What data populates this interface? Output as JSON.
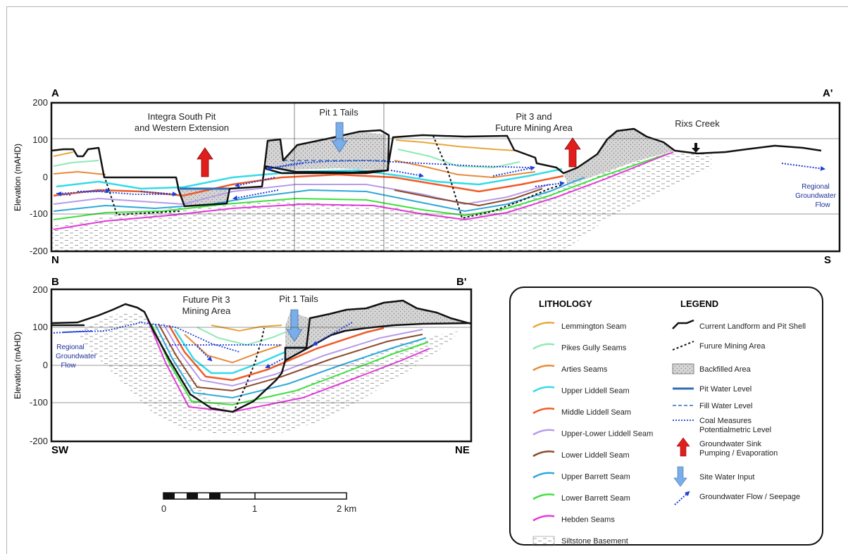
{
  "section_a": {
    "left_end": "A",
    "right_end": "A'",
    "left_bottom": "N",
    "right_bottom": "S",
    "y_axis_label": "Elevation (mAHD)",
    "y_ticks": [
      "200",
      "100",
      "0",
      "-100",
      "-200"
    ],
    "labels": {
      "integra_line1": "Integra South Pit",
      "integra_line2": "and Western Extension",
      "pit1_tails": "Pit 1 Tails",
      "pit3_line1": "Pit 3 and",
      "pit3_line2": "Future Mining Area",
      "rixs_creek": "Rixs Creek",
      "regional_line1": "Regional",
      "regional_line2": "Groundwater",
      "regional_line3": "Flow"
    }
  },
  "section_b": {
    "left_end": "B",
    "right_end": "B'",
    "left_bottom": "SW",
    "right_bottom": "NE",
    "y_axis_label": "Elevation (mAHD)",
    "y_ticks": [
      "200",
      "100",
      "0",
      "-100",
      "-200"
    ],
    "labels": {
      "future_pit3_line1": "Future Pit 3",
      "future_pit3_line2": "Mining Area",
      "pit1_tails": "Pit 1 Tails",
      "regional_line1": "Regional",
      "regional_line2": "Groundwater",
      "regional_line3": "Flow"
    }
  },
  "scale_bar": {
    "labels": [
      "0",
      "1",
      "2 km"
    ]
  },
  "lithology": {
    "title": "LITHOLOGY",
    "items": [
      {
        "label": "Lemmington Seam",
        "color": "#e8a83a",
        "kind": "line"
      },
      {
        "label": "Pikes Gully Seams",
        "color": "#8fe9b6",
        "kind": "line"
      },
      {
        "label": "Arties Seams",
        "color": "#e88a3a",
        "kind": "line"
      },
      {
        "label": "Upper Liddell Seam",
        "color": "#33dbe8",
        "kind": "line"
      },
      {
        "label": "Middle Liddell Seam",
        "color": "#f05a28",
        "kind": "line"
      },
      {
        "label": "Upper-Lower Liddell Seam",
        "color": "#b79be8",
        "kind": "line"
      },
      {
        "label": "Lower Liddell Seam",
        "color": "#8a4a2a",
        "kind": "line"
      },
      {
        "label": "Upper Barrett Seam",
        "color": "#2fa8d8",
        "kind": "line"
      },
      {
        "label": "Lower Barrett Seam",
        "color": "#3ee03e",
        "kind": "line"
      },
      {
        "label": "Hebden Seams",
        "color": "#e23ad8",
        "kind": "line"
      },
      {
        "label": "Siltstone Basement",
        "color": "#9a9a9a",
        "kind": "hatch"
      }
    ]
  },
  "legend": {
    "title": "LEGEND",
    "items": [
      {
        "label": "Current Landform and Pit Shell",
        "kind": "landform"
      },
      {
        "label": "Furure Mining Area",
        "kind": "future"
      },
      {
        "label": "Backfilled Area",
        "kind": "backfill"
      },
      {
        "label": "Pit Water Level",
        "kind": "pitwater"
      },
      {
        "label": "Fill Water Level",
        "kind": "fillwater"
      },
      {
        "label": "Coal Measures",
        "label2": "Potentialmetric Level",
        "kind": "potentiometric"
      },
      {
        "label": "Groundwater Sink",
        "label2": "Pumping / Evaporation",
        "kind": "sink"
      },
      {
        "label": "Site Water Input",
        "kind": "input"
      },
      {
        "label": "Groundwater Flow / Seepage",
        "kind": "flow"
      }
    ]
  },
  "colors": {
    "sink_red": "#e01e1e",
    "input_blue": "#7aaee8",
    "flow_blue": "#1f3fd8",
    "pit_water": "#2f6db5",
    "landform": "#111111",
    "backfill": "#d0d0d0"
  }
}
